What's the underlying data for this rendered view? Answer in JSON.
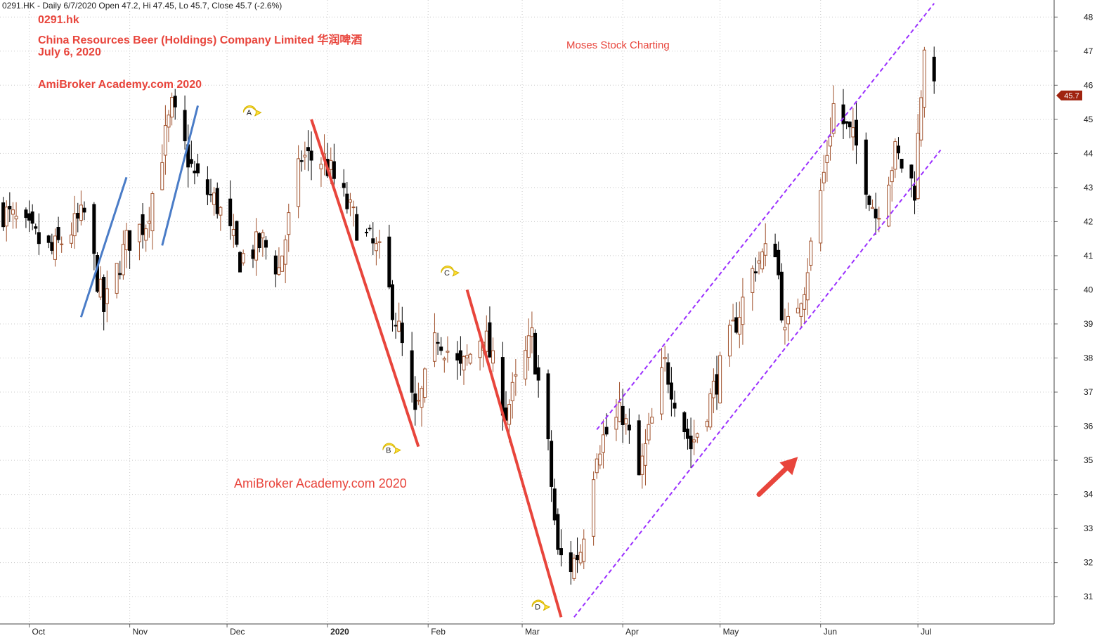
{
  "header": "0291.HK - Daily 6/7/2020 Open 47.2, Hi 47.45, Lo 45.7, Close 45.7 (-2.6%)",
  "titles": {
    "ticker": "0291.hk",
    "company": "China Resources Beer (Holdings) Company Limited 华润啤酒",
    "date": "July 6, 2020",
    "watermark": "AmiBroker Academy.com  2020",
    "watermark2": "AmiBroker Academy.com  2020",
    "branding": "Moses Stock Charting"
  },
  "colors": {
    "up": "#a0522d",
    "down": "#000000",
    "red_line": "#e8453c",
    "blue_line": "#4a7cc7",
    "channel": "#9b30ff",
    "label_fill": "#ffe033",
    "last_price_bg": "#a0230f"
  },
  "chart_data": {
    "type": "candlestick",
    "symbol": "0291.HK",
    "ylim": [
      30.2,
      48.5
    ],
    "yticks": [
      31,
      32,
      33,
      34,
      35,
      36,
      37,
      38,
      39,
      40,
      41,
      42,
      43,
      44,
      45,
      46,
      47,
      48
    ],
    "x_labels": [
      "Oct",
      "Nov",
      "Dec",
      "2020",
      "Feb",
      "Mar",
      "Apr",
      "May",
      "Jun",
      "Jul"
    ],
    "last_price": "45.7",
    "annotations": [
      "A",
      "B",
      "C",
      "D"
    ],
    "price_path": [
      [
        "2019-09-23",
        42.3
      ],
      [
        "2019-10-08",
        41.1
      ],
      [
        "2019-10-18",
        42.2
      ],
      [
        "2019-10-24",
        39.4
      ],
      [
        "2019-10-31",
        41.4
      ],
      [
        "2019-11-06",
        42.0
      ],
      [
        "2019-11-14",
        45.3
      ],
      [
        "2019-11-21",
        43.3
      ],
      [
        "2019-11-28",
        42.5
      ],
      [
        "2019-12-05",
        40.9
      ],
      [
        "2019-12-12",
        41.4
      ],
      [
        "2019-12-17",
        40.6
      ],
      [
        "2019-12-24",
        43.9
      ],
      [
        "2019-12-31",
        43.8
      ],
      [
        "2020-01-10",
        41.9
      ],
      [
        "2020-01-17",
        41.0
      ],
      [
        "2020-01-23",
        38.8
      ],
      [
        "2020-01-28",
        36.2
      ],
      [
        "2020-02-04",
        38.7
      ],
      [
        "2020-02-11",
        37.6
      ],
      [
        "2020-02-18",
        38.8
      ],
      [
        "2020-02-25",
        36.4
      ],
      [
        "2020-03-04",
        38.6
      ],
      [
        "2020-03-09",
        35.3
      ],
      [
        "2020-03-12",
        32.2
      ],
      [
        "2020-03-16",
        31.9
      ],
      [
        "2020-03-19",
        32.4
      ],
      [
        "2020-03-24",
        35.4
      ],
      [
        "2020-04-01",
        36.4
      ],
      [
        "2020-04-06",
        34.5
      ],
      [
        "2020-04-14",
        37.8
      ],
      [
        "2020-04-22",
        35.4
      ],
      [
        "2020-04-28",
        36.8
      ],
      [
        "2020-05-06",
        39.1
      ],
      [
        "2020-05-12",
        40.8
      ],
      [
        "2020-05-18",
        41.3
      ],
      [
        "2020-05-21",
        38.6
      ],
      [
        "2020-05-27",
        40.2
      ],
      [
        "2020-06-02",
        43.4
      ],
      [
        "2020-06-05",
        45.4
      ],
      [
        "2020-06-12",
        44.2
      ],
      [
        "2020-06-18",
        42.2
      ],
      [
        "2020-06-24",
        44.0
      ],
      [
        "2020-06-30",
        43.0
      ],
      [
        "2020-07-03",
        47.3
      ],
      [
        "2020-07-06",
        45.7
      ]
    ],
    "trendlines": [
      {
        "kind": "red",
        "from": [
          "2019-12-27",
          45.0
        ],
        "to": [
          "2020-01-29",
          35.4
        ]
      },
      {
        "kind": "red",
        "from": [
          "2020-02-13",
          40.0
        ],
        "to": [
          "2020-03-13",
          30.4
        ]
      },
      {
        "kind": "blue",
        "from": [
          "2019-10-17",
          39.2
        ],
        "to": [
          "2019-10-31",
          43.3
        ]
      },
      {
        "kind": "blue",
        "from": [
          "2019-11-11",
          41.3
        ],
        "to": [
          "2019-11-22",
          45.4
        ]
      },
      {
        "kind": "channel",
        "from": [
          "2020-03-17",
          30.4
        ],
        "to": [
          "2020-07-08",
          44.1
        ]
      },
      {
        "kind": "channel",
        "from": [
          "2020-03-24",
          35.9
        ],
        "to": [
          "2020-07-06",
          48.4
        ]
      }
    ],
    "label_points": [
      {
        "text": "A",
        "at": [
          "2019-12-08",
          45.2
        ]
      },
      {
        "text": "B",
        "at": [
          "2020-01-20",
          35.3
        ]
      },
      {
        "text": "C",
        "at": [
          "2020-02-07",
          40.5
        ]
      },
      {
        "text": "D",
        "at": [
          "2020-03-06",
          30.7
        ]
      }
    ],
    "arrow": {
      "from": [
        "2020-05-13",
        34.0
      ],
      "to": [
        "2020-05-25",
        35.1
      ]
    }
  }
}
